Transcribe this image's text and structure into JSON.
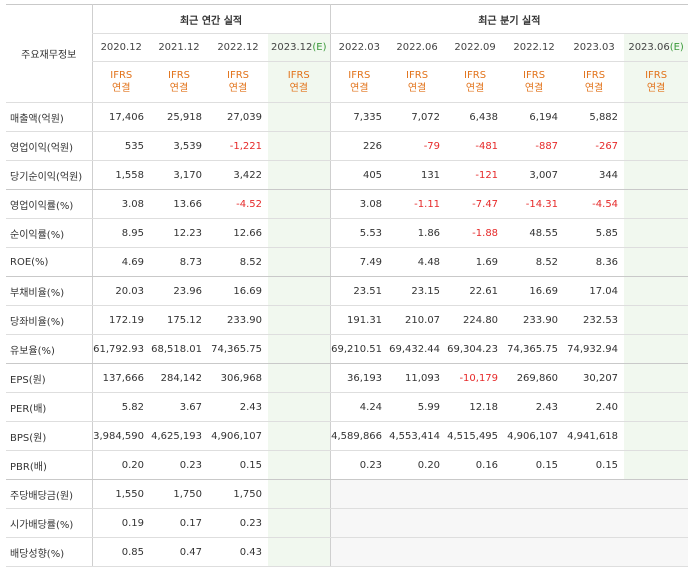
{
  "header": {
    "left_label": "주요재무정보",
    "annual_group": "최근 연간 실적",
    "quarter_group": "최근 분기 실적",
    "annual_periods": [
      {
        "label": "2020.12",
        "est": ""
      },
      {
        "label": "2021.12",
        "est": ""
      },
      {
        "label": "2022.12",
        "est": ""
      },
      {
        "label": "2023.12",
        "est": "(E)"
      }
    ],
    "quarter_periods": [
      {
        "label": "2022.03",
        "est": ""
      },
      {
        "label": "2022.06",
        "est": ""
      },
      {
        "label": "2022.09",
        "est": ""
      },
      {
        "label": "2022.12",
        "est": ""
      },
      {
        "label": "2023.03",
        "est": ""
      },
      {
        "label": "2023.06",
        "est": "(E)"
      }
    ],
    "basis_line1": "IFRS",
    "basis_line2": "연결"
  },
  "rows": [
    {
      "label": "매출액(억원)",
      "annual": [
        "17,406",
        "25,918",
        "27,039",
        ""
      ],
      "quarter": [
        "7,335",
        "7,072",
        "6,438",
        "6,194",
        "5,882",
        ""
      ]
    },
    {
      "label": "영업이익(억원)",
      "annual": [
        "535",
        "3,539",
        "-1,221",
        ""
      ],
      "quarter": [
        "226",
        "-79",
        "-481",
        "-887",
        "-267",
        ""
      ]
    },
    {
      "label": "당기순이익(억원)",
      "annual": [
        "1,558",
        "3,170",
        "3,422",
        ""
      ],
      "quarter": [
        "405",
        "131",
        "-121",
        "3,007",
        "344",
        ""
      ]
    },
    {
      "label": "영업이익률(%)",
      "annual": [
        "3.08",
        "13.66",
        "-4.52",
        ""
      ],
      "quarter": [
        "3.08",
        "-1.11",
        "-7.47",
        "-14.31",
        "-4.54",
        ""
      ]
    },
    {
      "label": "순이익률(%)",
      "annual": [
        "8.95",
        "12.23",
        "12.66",
        ""
      ],
      "quarter": [
        "5.53",
        "1.86",
        "-1.88",
        "48.55",
        "5.85",
        ""
      ]
    },
    {
      "label": "ROE(%)",
      "annual": [
        "4.69",
        "8.73",
        "8.52",
        ""
      ],
      "quarter": [
        "7.49",
        "4.48",
        "1.69",
        "8.52",
        "8.36",
        ""
      ]
    },
    {
      "label": "부채비율(%)",
      "annual": [
        "20.03",
        "23.96",
        "16.69",
        ""
      ],
      "quarter": [
        "23.51",
        "23.15",
        "22.61",
        "16.69",
        "17.04",
        ""
      ]
    },
    {
      "label": "당좌비율(%)",
      "annual": [
        "172.19",
        "175.12",
        "233.90",
        ""
      ],
      "quarter": [
        "191.31",
        "210.07",
        "224.80",
        "233.90",
        "232.53",
        ""
      ]
    },
    {
      "label": "유보율(%)",
      "annual": [
        "61,792.93",
        "68,518.01",
        "74,365.75",
        ""
      ],
      "quarter": [
        "69,210.51",
        "69,432.44",
        "69,304.23",
        "74,365.75",
        "74,932.94",
        ""
      ]
    },
    {
      "label": "EPS(원)",
      "annual": [
        "137,666",
        "284,142",
        "306,968",
        ""
      ],
      "quarter": [
        "36,193",
        "11,093",
        "-10,179",
        "269,860",
        "30,207",
        ""
      ]
    },
    {
      "label": "PER(배)",
      "annual": [
        "5.82",
        "3.67",
        "2.43",
        ""
      ],
      "quarter": [
        "4.24",
        "5.99",
        "12.18",
        "2.43",
        "2.40",
        ""
      ]
    },
    {
      "label": "BPS(원)",
      "annual": [
        "3,984,590",
        "4,625,193",
        "4,906,107",
        ""
      ],
      "quarter": [
        "4,589,866",
        "4,553,414",
        "4,515,495",
        "4,906,107",
        "4,941,618",
        ""
      ]
    },
    {
      "label": "PBR(배)",
      "annual": [
        "0.20",
        "0.23",
        "0.15",
        ""
      ],
      "quarter": [
        "0.23",
        "0.20",
        "0.16",
        "0.15",
        "0.15",
        ""
      ]
    },
    {
      "label": "주당배당금(원)",
      "annual": [
        "1,550",
        "1,750",
        "1,750",
        ""
      ],
      "quarter": [
        "",
        "",
        "",
        "",
        "",
        ""
      ]
    },
    {
      "label": "시가배당률(%)",
      "annual": [
        "0.19",
        "0.17",
        "0.23",
        ""
      ],
      "quarter": [
        "",
        "",
        "",
        "",
        "",
        ""
      ]
    },
    {
      "label": "배당성향(%)",
      "annual": [
        "0.85",
        "0.47",
        "0.43",
        ""
      ],
      "quarter": [
        "",
        "",
        "",
        "",
        "",
        ""
      ]
    }
  ],
  "colors": {
    "negative": "#e62a2a",
    "basis": "#e2731b",
    "estimate_bg": "#f1f8ef",
    "estimate_tag": "#3a9a3a"
  }
}
